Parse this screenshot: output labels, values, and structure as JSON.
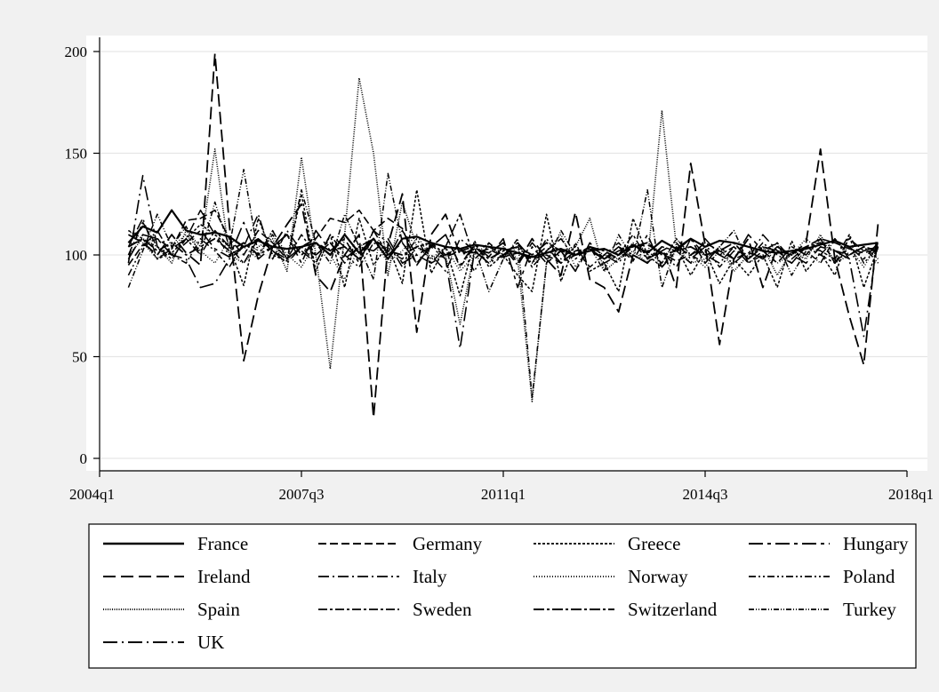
{
  "chart_data": {
    "type": "line",
    "title": "",
    "xlabel": "",
    "ylabel": "",
    "x_ticks": [
      "2004q1",
      "2007q3",
      "2011q1",
      "2014q3",
      "2018q1"
    ],
    "y_ticks": [
      0,
      50,
      100,
      150,
      200
    ],
    "xlim": [
      "2004q1",
      "2018q1"
    ],
    "ylim": [
      0,
      200
    ],
    "grid": "horizontal",
    "legend_position": "bottom",
    "x": [
      "2004q3",
      "2004q4",
      "2005q1",
      "2005q2",
      "2005q3",
      "2005q4",
      "2006q1",
      "2006q2",
      "2006q3",
      "2006q4",
      "2007q1",
      "2007q2",
      "2007q3",
      "2007q4",
      "2008q1",
      "2008q2",
      "2008q3",
      "2008q4",
      "2009q1",
      "2009q2",
      "2009q3",
      "2009q4",
      "2010q1",
      "2010q2",
      "2010q3",
      "2010q4",
      "2011q1",
      "2011q2",
      "2011q3",
      "2011q4",
      "2012q1",
      "2012q2",
      "2012q3",
      "2012q4",
      "2013q1",
      "2013q2",
      "2013q3",
      "2013q4",
      "2014q1",
      "2014q2",
      "2014q3",
      "2014q4",
      "2015q1",
      "2015q2",
      "2015q3",
      "2015q4",
      "2016q1",
      "2016q2",
      "2016q3",
      "2016q4",
      "2017q1",
      "2017q2",
      "2017q3"
    ],
    "series": [
      {
        "name": "France",
        "dash": "",
        "width": 2.2,
        "values": [
          106,
          114,
          111,
          122,
          112,
          110,
          111,
          109,
          104,
          107,
          104,
          103,
          104,
          106,
          100,
          110,
          101,
          108,
          98,
          108,
          109,
          106,
          104,
          103,
          105,
          104,
          103,
          101,
          99,
          101,
          103,
          100,
          102,
          103,
          100,
          105,
          101,
          107,
          103,
          108,
          104,
          107,
          106,
          104,
          102,
          101,
          102,
          103,
          105,
          107,
          104,
          105,
          106
        ]
      },
      {
        "name": "Germany",
        "dash": "9 4",
        "width": 1.6,
        "values": [
          95,
          105,
          108,
          103,
          117,
          118,
          122,
          108,
          100,
          112,
          106,
          98,
          104,
          108,
          118,
          116,
          122,
          112,
          118,
          113,
          95,
          105,
          99,
          102,
          101,
          103,
          99,
          101,
          98,
          100,
          96,
          102,
          103,
          98,
          102,
          104,
          105,
          101,
          97,
          100,
          106,
          102,
          98,
          101,
          99,
          103,
          101,
          104,
          108,
          106,
          103,
          101,
          103
        ]
      },
      {
        "name": "Greece",
        "dash": "3 2",
        "width": 1.5,
        "values": [
          112,
          108,
          98,
          101,
          108,
          115,
          110,
          104,
          85,
          118,
          100,
          97,
          130,
          92,
          110,
          84,
          118,
          95,
          105,
          86,
          132,
          91,
          104,
          80,
          107,
          94,
          100,
          90,
          82,
          120,
          87,
          106,
          92,
          96,
          82,
          118,
          100,
          94,
          104,
          90,
          102,
          86,
          98,
          90,
          100,
          84,
          107,
          92,
          101,
          90,
          110,
          84,
          104
        ]
      },
      {
        "name": "Hungary",
        "dash": "16 5 4 5",
        "width": 1.6,
        "values": [
          98,
          110,
          108,
          100,
          106,
          112,
          103,
          99,
          116,
          98,
          104,
          110,
          96,
          112,
          102,
          108,
          96,
          112,
          100,
          106,
          96,
          104,
          110,
          95,
          105,
          99,
          108,
          84,
          104,
          96,
          102,
          92,
          106,
          98,
          104,
          97,
          110,
          94,
          102,
          108,
          96,
          104,
          98,
          110,
          102,
          96,
          104,
          100,
          108,
          96,
          104,
          98,
          106
        ]
      },
      {
        "name": "Ireland",
        "dash": "14 6",
        "width": 1.8,
        "values": [
          110,
          106,
          100,
          110,
          101,
          95,
          199,
          115,
          48,
          80,
          104,
          115,
          125,
          90,
          82,
          100,
          110,
          20,
          105,
          130,
          62,
          110,
          120,
          100,
          103,
          101,
          106,
          96,
          108,
          98,
          90,
          121,
          88,
          84,
          72,
          100,
          96,
          104,
          84,
          145,
          105,
          56,
          98,
          108,
          84,
          104,
          100,
          106,
          152,
          98,
          70,
          46,
          116
        ]
      },
      {
        "name": "Italy",
        "dash": "12 4 2 4",
        "width": 1.5,
        "values": [
          104,
          118,
          98,
          103,
          108,
          122,
          110,
          100,
          104,
          120,
          98,
          112,
          102,
          96,
          110,
          104,
          98,
          112,
          106,
          94,
          104,
          100,
          92,
          108,
          102,
          96,
          104,
          95,
          106,
          98,
          102,
          92,
          104,
          100,
          96,
          106,
          98,
          102,
          94,
          108,
          100,
          96,
          104,
          98,
          110,
          102,
          96,
          104,
          100,
          108,
          98,
          102,
          104
        ]
      },
      {
        "name": "Norway",
        "dash": "1 2",
        "width": 1.4,
        "values": [
          112,
          106,
          98,
          104,
          110,
          102,
          96,
          108,
          104,
          98,
          112,
          100,
          94,
          106,
          100,
          88,
          104,
          108,
          96,
          102,
          110,
          98,
          104,
          92,
          100,
          106,
          98,
          104,
          96,
          102,
          110,
          94,
          104,
          100,
          98,
          106,
          102,
          96,
          108,
          100,
          94,
          102,
          106,
          98,
          104,
          96,
          100,
          108,
          102,
          98,
          104,
          94,
          106
        ]
      },
      {
        "name": "Poland",
        "dash": "8 3 2 3 2 3",
        "width": 1.5,
        "values": [
          90,
          104,
          112,
          100,
          96,
          108,
          102,
          94,
          106,
          100,
          112,
          98,
          104,
          96,
          110,
          100,
          94,
          106,
          102,
          98,
          108,
          96,
          100,
          104,
          92,
          106,
          100,
          102,
          96,
          108,
          98,
          104,
          94,
          100,
          106,
          98,
          102,
          96,
          108,
          100,
          104,
          94,
          102,
          98,
          106,
          100,
          96,
          104,
          102,
          98,
          110,
          96,
          104
        ]
      },
      {
        "name": "Spain",
        "dash": "1 1.5",
        "width": 1.6,
        "values": [
          100,
          108,
          104,
          96,
          112,
          104,
          152,
          100,
          96,
          104,
          108,
          92,
          148,
          100,
          44,
          110,
          187,
          150,
          90,
          126,
          104,
          98,
          100,
          66,
          102,
          96,
          104,
          98,
          28,
          96,
          102,
          104,
          118,
          92,
          98,
          102,
          96,
          171,
          104,
          96,
          98,
          104,
          92,
          100,
          104,
          90,
          102,
          98,
          110,
          96,
          100,
          104,
          98
        ]
      },
      {
        "name": "Sweden",
        "dash": "10 3 3 3",
        "width": 1.5,
        "values": [
          100,
          116,
          104,
          98,
          108,
          100,
          112,
          104,
          96,
          108,
          102,
          98,
          110,
          100,
          106,
          96,
          104,
          108,
          98,
          112,
          100,
          96,
          104,
          120,
          98,
          104,
          100,
          106,
          94,
          102,
          108,
          98,
          104,
          96,
          100,
          110,
          98,
          104,
          102,
          96,
          108,
          100,
          104,
          96,
          102,
          106,
          98,
          104,
          100,
          96,
          108,
          102,
          104
        ]
      },
      {
        "name": "Switzerland",
        "dash": "12 3 3 3",
        "width": 1.8,
        "values": [
          104,
          108,
          102,
          106,
          100,
          104,
          108,
          102,
          106,
          100,
          104,
          110,
          100,
          106,
          102,
          104,
          98,
          108,
          102,
          100,
          104,
          106,
          100,
          102,
          104,
          98,
          102,
          104,
          100,
          106,
          102,
          100,
          104,
          102,
          98,
          104,
          106,
          100,
          102,
          104,
          100,
          102,
          106,
          98,
          104,
          102,
          100,
          104,
          106,
          102,
          100,
          104,
          102
        ]
      },
      {
        "name": "Turkey",
        "dash": "6 2 1 2 1 2",
        "width": 1.5,
        "values": [
          84,
          102,
          120,
          104,
          114,
          100,
          126,
          104,
          142,
          100,
          110,
          98,
          132,
          106,
          96,
          120,
          104,
          88,
          140,
          106,
          96,
          104,
          110,
          94,
          104,
          82,
          98,
          108,
          30,
          96,
          112,
          100,
          104,
          92,
          110,
          98,
          132,
          84,
          104,
          100,
          96,
          104,
          112,
          96,
          100,
          106,
          90,
          102,
          96,
          108,
          100,
          104,
          96
        ]
      },
      {
        "name": "UK",
        "dash": "16 5 2 5",
        "width": 1.6,
        "values": [
          96,
          139,
          104,
          100,
          98,
          84,
          86,
          98,
          104,
          108,
          102,
          96,
          104,
          100,
          106,
          98,
          104,
          102,
          108,
          96,
          100,
          104,
          98,
          54,
          102,
          96,
          100,
          106,
          98,
          104,
          96,
          100,
          102,
          98,
          104,
          100,
          96,
          102,
          106,
          98,
          104,
          100,
          96,
          102,
          98,
          104,
          100,
          96,
          104,
          102,
          98,
          60,
          108
        ]
      }
    ]
  }
}
